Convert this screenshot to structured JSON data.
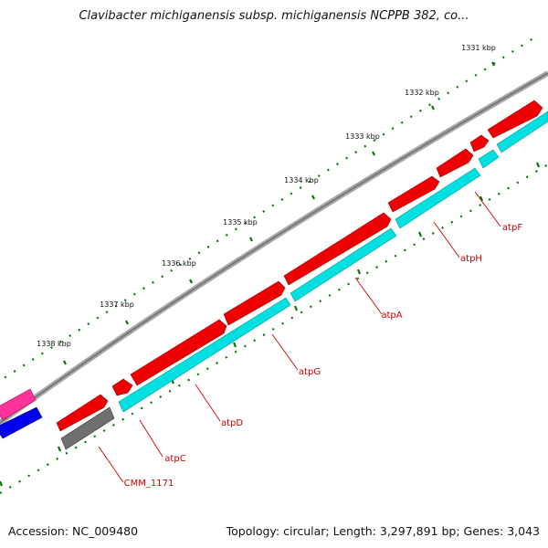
{
  "title": "Clavibacter michiganensis subsp. michiganensis NCPPB 382, co...",
  "accession_label": "Accession: NC_009480",
  "summary_label": "Topology: circular; Length: 3,297,891 bp; Genes: 3,043",
  "ticks": [
    {
      "label": "1331 kbp"
    },
    {
      "label": "1332 kbp"
    },
    {
      "label": "1333 kbp"
    },
    {
      "label": "1334 kbp"
    },
    {
      "label": "1335 kbp"
    },
    {
      "label": "1336 kbp"
    },
    {
      "label": "1337 kbp"
    },
    {
      "label": "1338 kbp"
    }
  ],
  "genes": [
    {
      "name": "atpF",
      "label": "atpF"
    },
    {
      "name": "atpH",
      "label": "atpH"
    },
    {
      "name": "atpA",
      "label": "atpA"
    },
    {
      "name": "atpG",
      "label": "atpG"
    },
    {
      "name": "atpD",
      "label": "atpD"
    },
    {
      "name": "atpC",
      "label": "atpC"
    },
    {
      "name": "CMM_1171",
      "label": "CMM_1171"
    }
  ],
  "colors": {
    "forward_feature": "#ff0000",
    "cds": "#00e6e6",
    "other_gene": "#707070",
    "pink_feature": "#ff3399",
    "blue_feature": "#0000ee",
    "tick": "#007700",
    "backbone": "#888888",
    "label_red": "#cc0000"
  }
}
